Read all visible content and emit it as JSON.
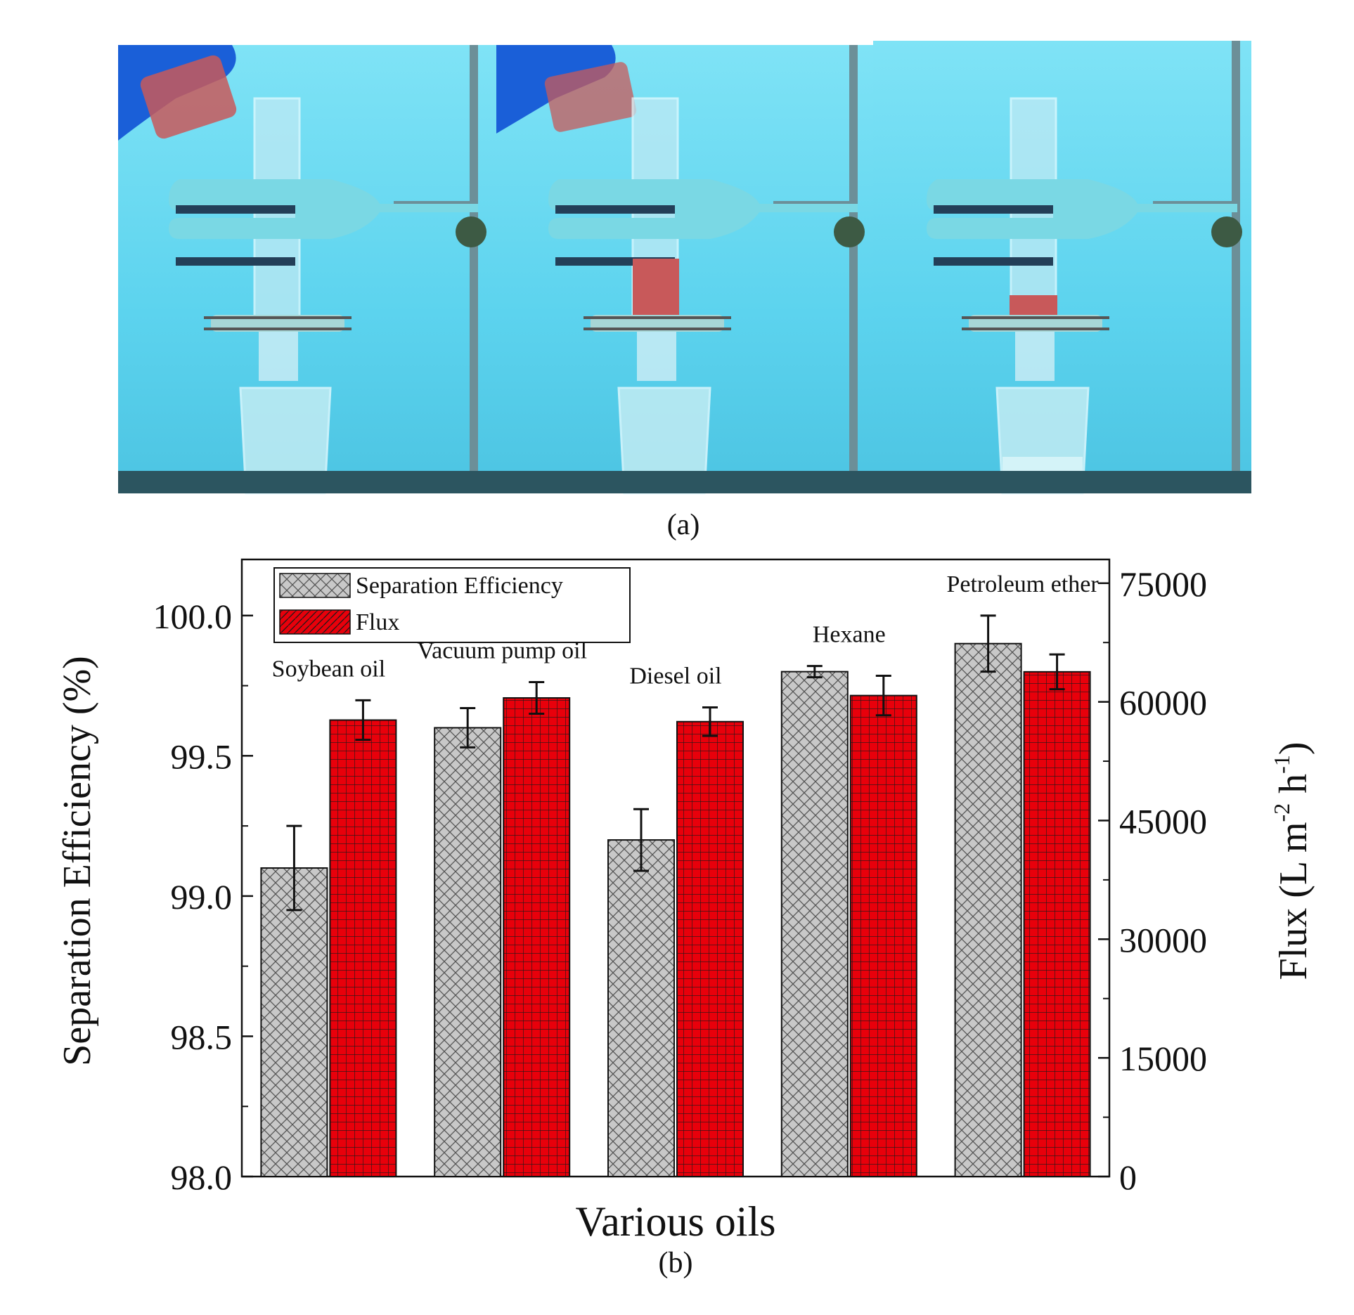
{
  "panel_a": {
    "label": "(a)",
    "photos": [
      "photo-step-1-pouring",
      "photo-step-2-filtering",
      "photo-step-3-separated"
    ],
    "colors": {
      "background": "#61d6ef",
      "clamp": "#7ad8e4",
      "clamp_dark": "#233f58",
      "glove": "#1a5fd8",
      "oil": "#c8595a",
      "base": "#2c5560"
    }
  },
  "panel_b_label": "(b)",
  "chart_data": {
    "type": "bar",
    "xlabel": "Various oils",
    "ylabel": "Separation Efficiency (%)",
    "y2label_main": "Flux (L m",
    "y2label_exp1": "-2",
    "y2label_mid": " h",
    "y2label_exp2": "-1",
    "y2label_end": ")",
    "ylim": [
      98.0,
      100.2
    ],
    "y2lim": [
      0,
      78000
    ],
    "yticks": [
      98.0,
      98.5,
      99.0,
      99.5,
      100.0
    ],
    "ytick_labels": [
      "98.0",
      "98.5",
      "99.0",
      "99.5",
      "100.0"
    ],
    "y2ticks": [
      0,
      15000,
      30000,
      45000,
      60000,
      75000
    ],
    "y2tick_labels": [
      "0",
      "15000",
      "30000",
      "45000",
      "60000",
      "75000"
    ],
    "categories": [
      "Soybean oil",
      "Vacuum pump oil",
      "Diesel oil",
      "Hexane",
      "Petroleum ether"
    ],
    "series": [
      {
        "name": "Separation Efficiency",
        "axis": "left",
        "values": [
          99.1,
          99.6,
          99.2,
          99.8,
          99.9
        ],
        "errors": [
          0.15,
          0.07,
          0.11,
          0.02,
          0.1
        ],
        "color": "#c8c8c8",
        "pattern": "crosshatch"
      },
      {
        "name": "Flux",
        "axis": "right",
        "values": [
          57700,
          60500,
          57500,
          60800,
          63800
        ],
        "errors": [
          2500,
          2000,
          1800,
          2500,
          2200
        ],
        "color": "#e8000b",
        "pattern": "grid"
      }
    ],
    "legend_position": "top-left",
    "legend_swatch_labels": [
      "Separation Efficiency",
      "Flux"
    ]
  }
}
